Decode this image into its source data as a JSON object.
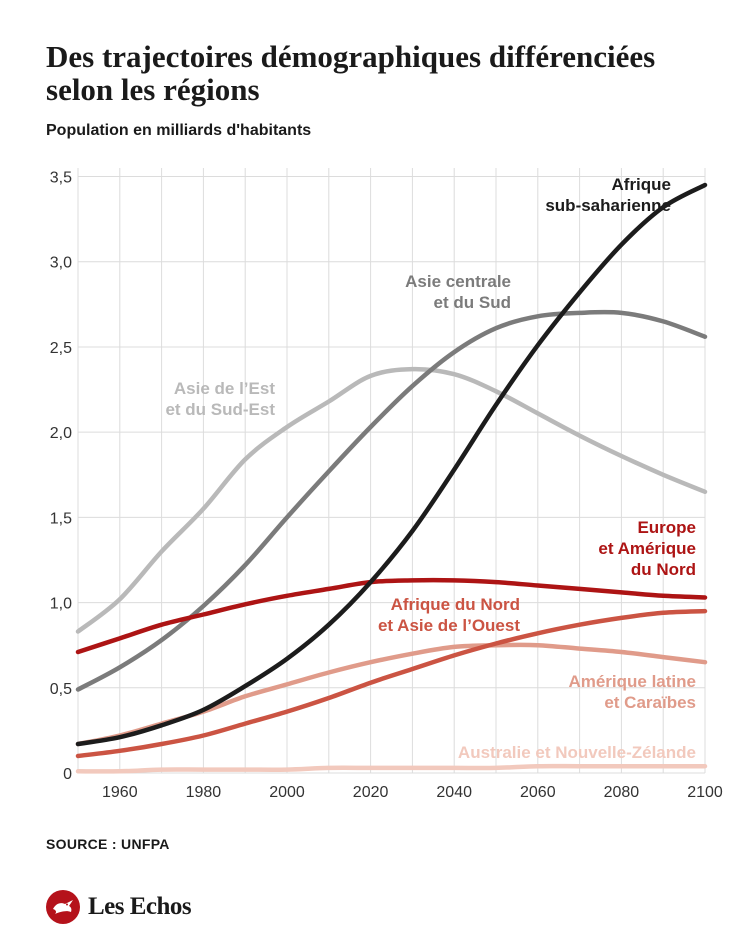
{
  "header": {
    "title": "Des trajectoires démographiques différenciées selon les régions",
    "subtitle": "Population en milliards d'habitants"
  },
  "footer": {
    "source": "SOURCE : UNFPA",
    "brand": "Les Echos",
    "logo_icon": "les-echos-bird-logo"
  },
  "chart_data": {
    "type": "line",
    "title": "Des trajectoires démographiques différenciées selon les régions",
    "ylabel": "Population en milliards d'habitants",
    "x": [
      1950,
      1960,
      1970,
      1980,
      1990,
      2000,
      2010,
      2020,
      2030,
      2040,
      2050,
      2060,
      2070,
      2080,
      2090,
      2100
    ],
    "x_ticks": [
      1960,
      1980,
      2000,
      2020,
      2040,
      2060,
      2080,
      2100
    ],
    "y_ticks": [
      0,
      0.5,
      1.0,
      1.5,
      2.0,
      2.5,
      3.0,
      3.5
    ],
    "y_tick_labels": [
      "0",
      "0,5",
      "1,0",
      "1,5",
      "2,0",
      "2,5",
      "3,0",
      "3,5"
    ],
    "xlim": [
      1950,
      2100
    ],
    "ylim": [
      0,
      3.55
    ],
    "grid": true,
    "series": [
      {
        "name": "Asie de l'Est et du Sud-Est",
        "label_lines": [
          "Asie de l’Est",
          "et du Sud-Est"
        ],
        "color": "#b9b9b9",
        "values": [
          0.83,
          1.02,
          1.3,
          1.55,
          1.84,
          2.03,
          2.18,
          2.33,
          2.37,
          2.34,
          2.24,
          2.11,
          1.98,
          1.86,
          1.75,
          1.65
        ]
      },
      {
        "name": "Asie centrale et du Sud",
        "label_lines": [
          "Asie centrale",
          "et du Sud"
        ],
        "color": "#7b7b7b",
        "values": [
          0.49,
          0.62,
          0.78,
          0.98,
          1.22,
          1.5,
          1.77,
          2.03,
          2.27,
          2.47,
          2.61,
          2.68,
          2.7,
          2.7,
          2.65,
          2.56
        ]
      },
      {
        "name": "Afrique sub-saharienne",
        "label_lines": [
          "Afrique",
          "sub-saharienne"
        ],
        "color": "#1c1c1c",
        "values": [
          0.17,
          0.21,
          0.28,
          0.37,
          0.51,
          0.67,
          0.87,
          1.12,
          1.42,
          1.78,
          2.16,
          2.51,
          2.82,
          3.1,
          3.32,
          3.45
        ]
      },
      {
        "name": "Europe et Amérique du Nord",
        "label_lines": [
          "Europe",
          "et Amérique",
          "du Nord"
        ],
        "color": "#ad1414",
        "values": [
          0.71,
          0.79,
          0.87,
          0.93,
          0.99,
          1.04,
          1.08,
          1.12,
          1.13,
          1.13,
          1.12,
          1.1,
          1.08,
          1.06,
          1.04,
          1.03
        ]
      },
      {
        "name": "Afrique du Nord et Asie de l'Ouest",
        "label_lines": [
          "Afrique du Nord",
          "et Asie de l’Ouest"
        ],
        "color": "#cb5443",
        "values": [
          0.1,
          0.13,
          0.17,
          0.22,
          0.29,
          0.36,
          0.44,
          0.53,
          0.61,
          0.69,
          0.76,
          0.82,
          0.87,
          0.91,
          0.94,
          0.95
        ]
      },
      {
        "name": "Amérique latine et Caraïbes",
        "label_lines": [
          "Amérique latine",
          "et Caraïbes"
        ],
        "color": "#e09b8a",
        "values": [
          0.17,
          0.22,
          0.29,
          0.36,
          0.45,
          0.52,
          0.59,
          0.65,
          0.7,
          0.74,
          0.75,
          0.75,
          0.73,
          0.71,
          0.68,
          0.65
        ]
      },
      {
        "name": "Australie et Nouvelle-Zélande",
        "label_lines": [
          "Australie et Nouvelle-Zélande"
        ],
        "color": "#f2c9bd",
        "values": [
          0.01,
          0.01,
          0.02,
          0.02,
          0.02,
          0.02,
          0.03,
          0.03,
          0.03,
          0.03,
          0.03,
          0.04,
          0.04,
          0.04,
          0.04,
          0.04
        ]
      }
    ]
  }
}
